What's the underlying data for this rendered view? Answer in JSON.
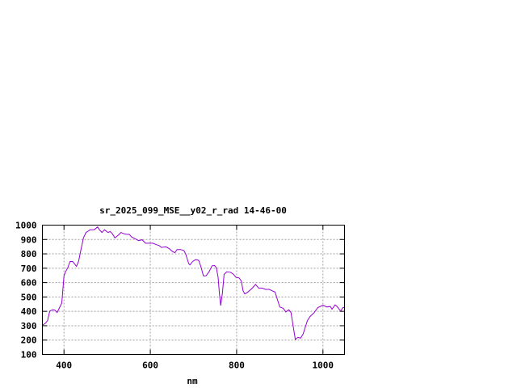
{
  "chart_data": {
    "type": "line",
    "title": "sr_2025_099_MSE__y02_r_rad 14-46-00",
    "xlabel": "nm",
    "ylabel": "",
    "xlim": [
      350,
      1050
    ],
    "ylim": [
      100,
      1000
    ],
    "xticks": [
      400,
      600,
      800,
      1000
    ],
    "yticks": [
      100,
      200,
      300,
      400,
      500,
      600,
      700,
      800,
      900,
      1000
    ],
    "grid": true,
    "legend": "none",
    "series_color": "#9400d3",
    "series": [
      {
        "x": [
          350,
          357,
          362,
          367,
          374,
          379,
          384,
          389,
          395,
          400,
          403,
          409,
          414,
          420,
          424,
          429,
          434,
          439,
          445,
          451,
          461,
          470,
          478,
          482,
          488,
          494,
          498,
          502,
          507,
          512,
          518,
          526,
          532,
          539,
          545,
          551,
          557,
          567,
          573,
          581,
          589,
          598,
          606,
          614,
          620,
          626,
          636,
          644,
          651,
          657,
          662,
          670,
          678,
          682,
          689,
          692,
          698,
          705,
          712,
          717,
          723,
          729,
          736,
          743,
          749,
          753,
          757,
          760,
          763,
          767,
          771,
          777,
          786,
          793,
          798,
          806,
          811,
          815,
          819,
          826,
          835,
          844,
          851,
          859,
          867,
          876,
          882,
          889,
          895,
          900,
          908,
          914,
          921,
          926,
          931,
          936,
          942,
          948,
          954,
          964,
          970,
          980,
          988,
          1000,
          1009,
          1017,
          1021,
          1028,
          1032,
          1041,
          1046,
          1050
        ],
        "y": [
          304,
          317,
          336,
          402,
          411,
          408,
          392,
          421,
          458,
          647,
          672,
          704,
          747,
          747,
          732,
          713,
          751,
          826,
          911,
          949,
          968,
          968,
          987,
          968,
          949,
          968,
          958,
          949,
          955,
          940,
          911,
          930,
          949,
          940,
          936,
          936,
          917,
          902,
          892,
          898,
          874,
          874,
          874,
          864,
          858,
          845,
          849,
          836,
          817,
          808,
          830,
          830,
          823,
          798,
          732,
          723,
          747,
          760,
          755,
          713,
          647,
          647,
          675,
          717,
          719,
          704,
          638,
          525,
          440,
          525,
          657,
          675,
          672,
          657,
          638,
          632,
          609,
          543,
          521,
          534,
          558,
          587,
          562,
          562,
          553,
          553,
          543,
          534,
          477,
          430,
          421,
          396,
          411,
          392,
          298,
          204,
          219,
          213,
          242,
          336,
          364,
          392,
          426,
          443,
          430,
          434,
          415,
          445,
          436,
          402,
          426,
          426
        ]
      }
    ]
  }
}
